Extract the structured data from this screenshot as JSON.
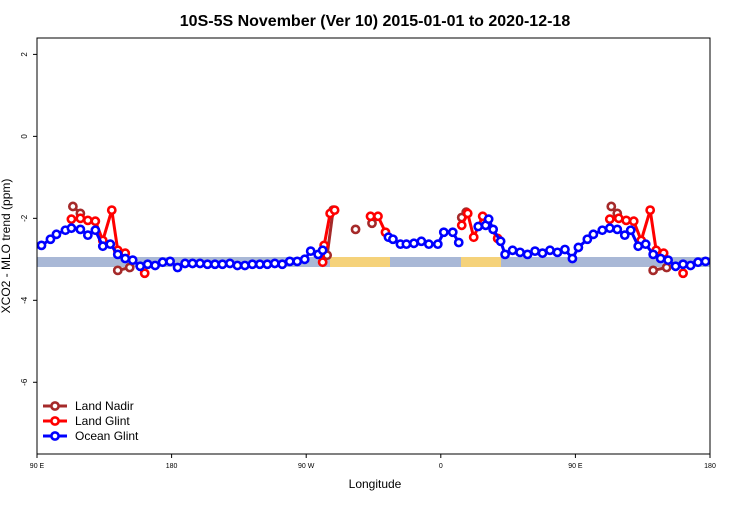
{
  "chart_data": {
    "type": "line",
    "title": "10S-5S November (Ver 10)   2015-01-01 to 2020-12-18",
    "x_label": "Longitude",
    "y_label": "XCO2 - MLO trend (ppm)",
    "xlim": [
      90,
      540
    ],
    "xticks": [
      {
        "value": 90,
        "label": "90 E"
      },
      {
        "value": 180,
        "label": "180"
      },
      {
        "value": 270,
        "label": "90 W"
      },
      {
        "value": 360,
        "label": "0"
      },
      {
        "value": 450,
        "label": "90 E"
      },
      {
        "value": 540,
        "label": "180"
      }
    ],
    "ylim": [
      -7.75,
      2.4
    ],
    "yticks": [
      2,
      0,
      -2,
      -4,
      -6
    ],
    "legend": "bottomleft",
    "series": [
      {
        "name": "Land Nadir",
        "color": "#a52a2a",
        "x": [
          114,
          119,
          130,
          144,
          152,
          200,
          284,
          288,
          296,
          303,
          308,
          314,
          350,
          374,
          377,
          420,
          474,
          478,
          490,
          502,
          511
        ],
        "values": [
          -1.71,
          -1.88,
          null,
          -3.27,
          -3.2,
          null,
          -2.9,
          -1.8,
          null,
          -2.27,
          null,
          -2.12,
          null,
          -1.98,
          -1.85,
          null,
          -1.71,
          -1.88,
          null,
          -3.27,
          -3.2
        ]
      },
      {
        "name": "Land Glint",
        "color": "#ff0000",
        "x": [
          113,
          119,
          124,
          129,
          134,
          140,
          144,
          149,
          155,
          162,
          200,
          281,
          282,
          286,
          289,
          300,
          313,
          318,
          323,
          350,
          374,
          378,
          382,
          388,
          398,
          450,
          473,
          479,
          484,
          489,
          494,
          500,
          504,
          509,
          515,
          522
        ],
        "values": [
          -2.02,
          -2.0,
          -2.05,
          -2.07,
          -2.54,
          -1.8,
          -2.78,
          -2.85,
          null,
          -3.34,
          null,
          -3.07,
          -2.66,
          -1.88,
          -1.8,
          null,
          -1.95,
          -1.95,
          -2.34,
          null,
          -2.17,
          -1.88,
          -2.46,
          -1.95,
          -2.49,
          null,
          -2.02,
          -2.0,
          -2.05,
          -2.07,
          -2.54,
          -1.8,
          -2.78,
          -2.85,
          null,
          -3.34
        ]
      },
      {
        "name": "Ocean Glint",
        "color": "#0000ff",
        "x": [
          93,
          99,
          103,
          109,
          113,
          119,
          124,
          129,
          134,
          139,
          144,
          149,
          154,
          159,
          164,
          169,
          174,
          179,
          184,
          189,
          194,
          199,
          204,
          209,
          214,
          219,
          224,
          229,
          234,
          239,
          244,
          249,
          254,
          259,
          264,
          269,
          273,
          278,
          281,
          300,
          325,
          328,
          333,
          337,
          342,
          347,
          352,
          358,
          362,
          368,
          372,
          376,
          385,
          390,
          392,
          395,
          400,
          403,
          408,
          413,
          418,
          423,
          428,
          433,
          438,
          443,
          448,
          452,
          458,
          462,
          468,
          473,
          478,
          483,
          487,
          492,
          497,
          502,
          507,
          512,
          517,
          522,
          527,
          532,
          537
        ],
        "values": [
          -2.66,
          -2.51,
          -2.39,
          -2.29,
          -2.24,
          -2.27,
          -2.41,
          -2.29,
          -2.68,
          -2.63,
          -2.88,
          -2.98,
          -3.02,
          -3.17,
          -3.12,
          -3.15,
          -3.07,
          -3.05,
          -3.2,
          -3.1,
          -3.1,
          -3.1,
          -3.12,
          -3.12,
          -3.12,
          -3.1,
          -3.15,
          -3.15,
          -3.12,
          -3.12,
          -3.12,
          -3.1,
          -3.12,
          -3.05,
          -3.05,
          -3.0,
          -2.8,
          -2.88,
          -2.78,
          null,
          -2.46,
          -2.51,
          -2.63,
          -2.63,
          -2.61,
          -2.56,
          -2.63,
          -2.63,
          -2.34,
          -2.34,
          -2.59,
          null,
          -2.2,
          -2.17,
          -2.02,
          -2.27,
          -2.56,
          -2.88,
          -2.78,
          -2.83,
          -2.88,
          -2.8,
          -2.85,
          -2.78,
          -2.83,
          -2.76,
          -2.98,
          -2.71,
          -2.51,
          -2.39,
          -2.29,
          -2.24,
          -2.27,
          -2.41,
          -2.29,
          -2.68,
          -2.63,
          -2.88,
          -2.98,
          -3.02,
          -3.17,
          -3.12,
          -3.15,
          -3.07,
          -3.05
        ]
      }
    ]
  }
}
